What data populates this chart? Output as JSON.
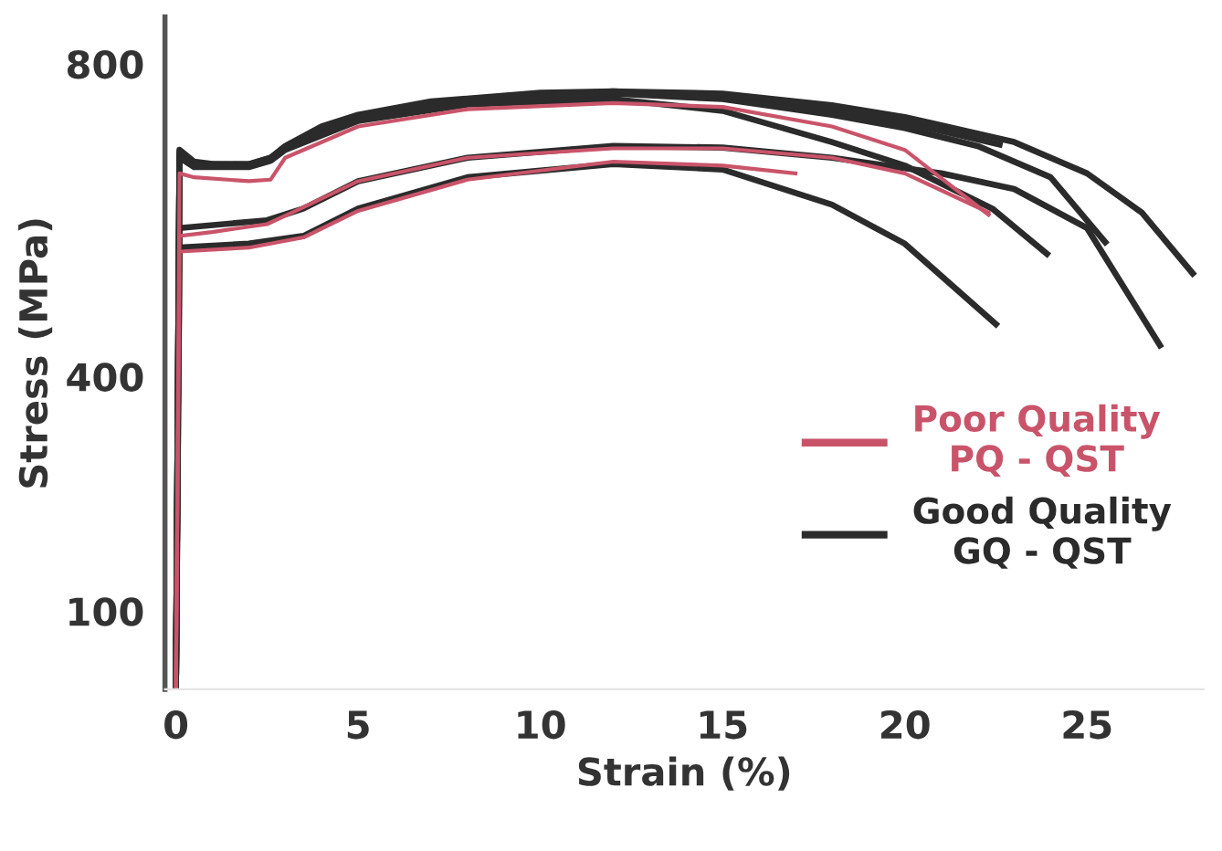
{
  "chart_data": {
    "type": "line",
    "xlabel": "Strain (%)",
    "ylabel": "Stress (MPa)",
    "xlim": [
      -0.3,
      28.2
    ],
    "xticks": [
      0,
      5,
      10,
      15,
      20,
      25
    ],
    "ylim": [
      0,
      860
    ],
    "yticks": [
      100,
      400,
      800
    ],
    "grid": false,
    "legend": "right",
    "marker": "none",
    "line_style": "solid",
    "series": [
      {
        "name": "Good Quality\nGQ - QST",
        "color": "#2b2b2b",
        "x": [
          0,
          0.1,
          0.5,
          1,
          2,
          2.6,
          3,
          4,
          5,
          7,
          10,
          12,
          15,
          18,
          20,
          22.6
        ],
        "values": [
          0,
          690,
          675,
          672,
          672,
          680,
          695,
          720,
          735,
          752,
          763,
          765,
          758,
          740,
          725,
          697
        ]
      },
      {
        "color": "#2b2b2b",
        "x": [
          0,
          0.1,
          0.5,
          2,
          2.6,
          3,
          5,
          8,
          12,
          15,
          18,
          20,
          23,
          25,
          26.5,
          27.9
        ],
        "values": [
          0,
          685,
          670,
          670,
          678,
          693,
          732,
          755,
          765,
          762,
          747,
          732,
          700,
          660,
          610,
          532
        ]
      },
      {
        "color": "#2b2b2b",
        "x": [
          0,
          0.1,
          0.5,
          2,
          2.6,
          3,
          5,
          8,
          12,
          15,
          18,
          20,
          22,
          24,
          25.5
        ],
        "values": [
          0,
          688,
          672,
          671,
          680,
          694,
          730,
          752,
          762,
          755,
          735,
          718,
          695,
          655,
          572
        ]
      },
      {
        "color": "#2b2b2b",
        "x": [
          0,
          0.1,
          0.5,
          2,
          2.6,
          3,
          5,
          8,
          12,
          15,
          18,
          20,
          22.4,
          23.9
        ],
        "values": [
          0,
          680,
          668,
          668,
          676,
          690,
          727,
          748,
          755,
          740,
          700,
          670,
          615,
          557
        ]
      },
      {
        "color": "#2b2b2b",
        "x": [
          0,
          0.1,
          2.5,
          3.5,
          5,
          8,
          12,
          15,
          18,
          21,
          23,
          25,
          27
        ],
        "values": [
          0,
          590,
          600,
          615,
          650,
          680,
          695,
          693,
          680,
          660,
          640,
          590,
          440
        ]
      },
      {
        "color": "#2b2b2b",
        "x": [
          0,
          0.1,
          2,
          3.5,
          5,
          8,
          12,
          15,
          18,
          20,
          22.5
        ],
        "values": [
          0,
          565,
          570,
          580,
          615,
          655,
          672,
          665,
          620,
          570,
          467
        ]
      },
      {
        "name": "Poor Quality\nPQ - QST",
        "color": "#c9546a",
        "x": [
          0,
          0.1,
          0.5,
          2,
          2.6,
          3,
          5,
          8,
          12,
          15,
          18,
          20,
          22.3
        ],
        "values": [
          0,
          660,
          655,
          650,
          652,
          680,
          720,
          742,
          750,
          745,
          720,
          690,
          607
        ]
      },
      {
        "color": "#c9546a",
        "x": [
          0,
          0.1,
          1,
          2.5,
          3.2,
          5,
          8,
          12,
          15,
          18,
          20,
          22.3
        ],
        "values": [
          0,
          580,
          585,
          595,
          610,
          650,
          680,
          692,
          692,
          680,
          660,
          610
        ]
      },
      {
        "color": "#c9546a",
        "x": [
          0,
          0.1,
          2,
          3.5,
          5,
          8,
          12,
          15,
          17
        ],
        "values": [
          0,
          560,
          565,
          578,
          612,
          652,
          675,
          670,
          660
        ]
      }
    ]
  }
}
